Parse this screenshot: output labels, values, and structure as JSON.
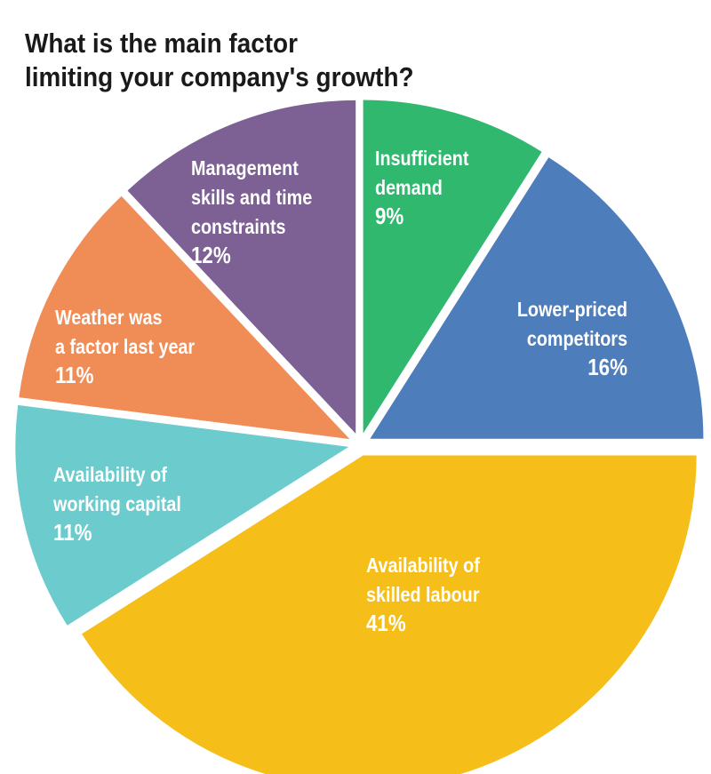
{
  "chart_data": {
    "type": "pie",
    "title_lines": [
      "What is the main factor",
      "limiting your company's growth?"
    ],
    "slices": [
      {
        "label_lines": [
          "Insufficient",
          "demand"
        ],
        "value": 9,
        "value_label": "9%",
        "color": "#2fb86e"
      },
      {
        "label_lines": [
          "Lower-priced",
          "competitors"
        ],
        "value": 16,
        "value_label": "16%",
        "color": "#4d7dbb"
      },
      {
        "label_lines": [
          "Availability of",
          "skilled labour"
        ],
        "value": 41,
        "value_label": "41%",
        "color": "#f6be19"
      },
      {
        "label_lines": [
          "Availability of",
          "working capital"
        ],
        "value": 11,
        "value_label": "11%",
        "color": "#6ccbcc"
      },
      {
        "label_lines": [
          "Weather was",
          "a factor last year"
        ],
        "value": 11,
        "value_label": "11%",
        "color": "#f08c55"
      },
      {
        "label_lines": [
          "Management",
          "skills and time",
          "constraints"
        ],
        "value": 12,
        "value_label": "12%",
        "color": "#7d6195"
      }
    ]
  }
}
